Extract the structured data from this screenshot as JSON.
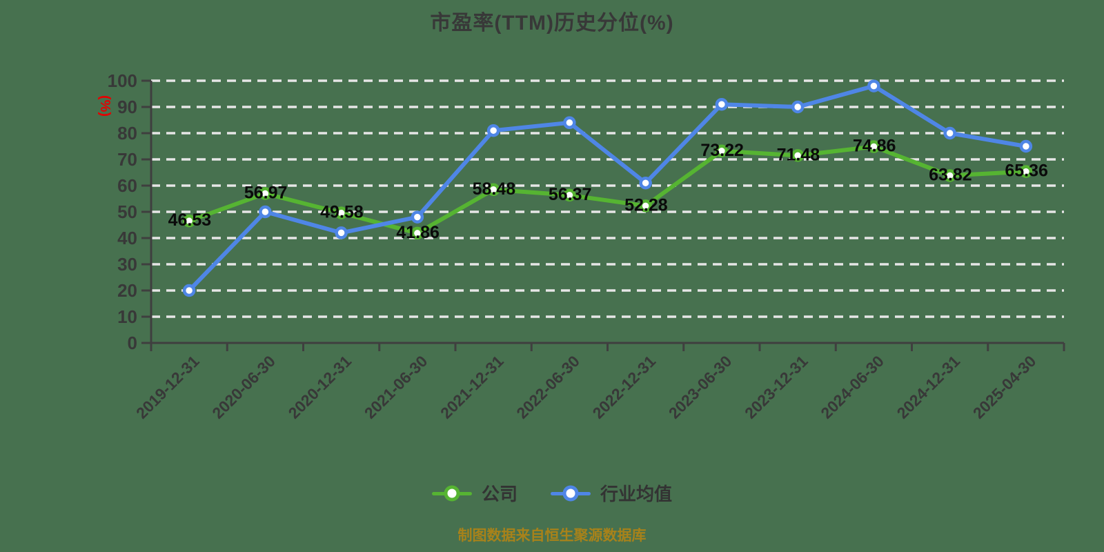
{
  "chart_data": {
    "type": "line",
    "title": "市盈率(TTM)历史分位(%)",
    "ylabel": "(%)",
    "source_note": "制图数据来自恒生聚源数据库",
    "categories": [
      "2019-12-31",
      "2020-06-30",
      "2020-12-31",
      "2021-06-30",
      "2021-12-31",
      "2022-06-30",
      "2022-12-31",
      "2023-06-30",
      "2023-12-31",
      "2024-06-30",
      "2024-12-31",
      "2025-04-30"
    ],
    "series": [
      {
        "name": "公司",
        "color": "#56b432",
        "data_labels": true,
        "values": [
          46.53,
          56.97,
          49.58,
          41.86,
          58.48,
          56.37,
          52.28,
          73.22,
          71.48,
          74.86,
          63.82,
          65.36
        ]
      },
      {
        "name": "行业均值",
        "color": "#4f86e6",
        "data_labels": false,
        "values": [
          20,
          50,
          42,
          48,
          81,
          84,
          61,
          91,
          90,
          98,
          80,
          75
        ]
      }
    ],
    "ylim": [
      0,
      100
    ],
    "ytick_step": 10,
    "grid": "horizontal-dashed",
    "legend_position": "bottom"
  },
  "colors": {
    "background": "#47714f",
    "axis": "#3f3f3f",
    "grid": "#e6e6e6",
    "tick_text": "#383838",
    "title_text": "#383838",
    "unit_label": "#e60000",
    "source_text": "#a8821a",
    "data_label": "#0a0a0a",
    "legend_text": "#333333"
  }
}
